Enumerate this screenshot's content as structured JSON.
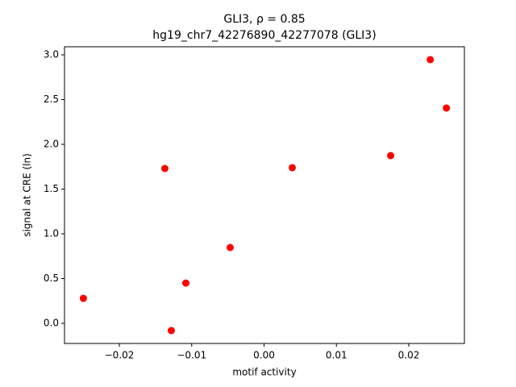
{
  "chart_data": {
    "type": "scatter",
    "title": "GLI3, ρ = 0.85",
    "subtitle": "hg19_chr7_42276890_42277078 (GLI3)",
    "x_label": "motif activity",
    "y_label": "signal at CRE (ln)",
    "color": "#ff0000",
    "x": [
      -0.02497,
      -0.01371,
      -0.01282,
      -0.01081,
      -0.00468,
      0.0039,
      0.0175,
      0.02297,
      0.0252
    ],
    "values": [
      0.279,
      1.73,
      -0.081,
      0.45,
      0.847,
      1.739,
      1.874,
      2.946,
      2.405
    ],
    "xlim": [
      -0.02758,
      0.02769
    ],
    "ylim": [
      -0.225,
      3.09
    ],
    "xticks": [
      {
        "value": -0.02,
        "label": "−0.02"
      },
      {
        "value": -0.01,
        "label": "−0.01"
      },
      {
        "value": 0,
        "label": "0.00"
      },
      0.01,
      0.02
    ],
    "yticks": [
      {
        "value": 0,
        "label": "0.0"
      },
      0.5,
      {
        "value": 1,
        "label": "1.0"
      },
      1.5,
      {
        "value": 2,
        "label": "2.0"
      },
      2.5,
      {
        "value": 3,
        "label": "3.0"
      }
    ],
    "grid": false
  }
}
